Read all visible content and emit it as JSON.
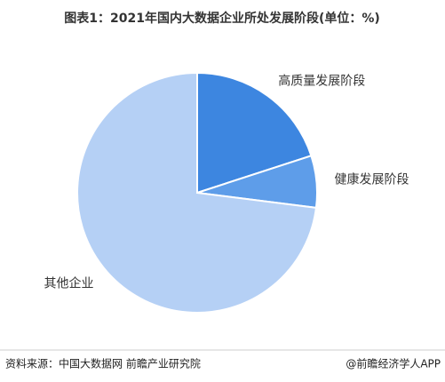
{
  "chart_data": {
    "type": "pie",
    "title": "图表1：2021年国内大数据企业所处发展阶段(单位：%)",
    "categories": [
      "高质量发展阶段",
      "健康发展阶段",
      "其他企业"
    ],
    "values": [
      20,
      7,
      73
    ],
    "colors": [
      "#3d86e0",
      "#5e9de9",
      "#b5d0f5"
    ],
    "source": "资料来源：中国大数据网 前瞻产业研究院",
    "credit": "@前瞻经济学人APP"
  }
}
